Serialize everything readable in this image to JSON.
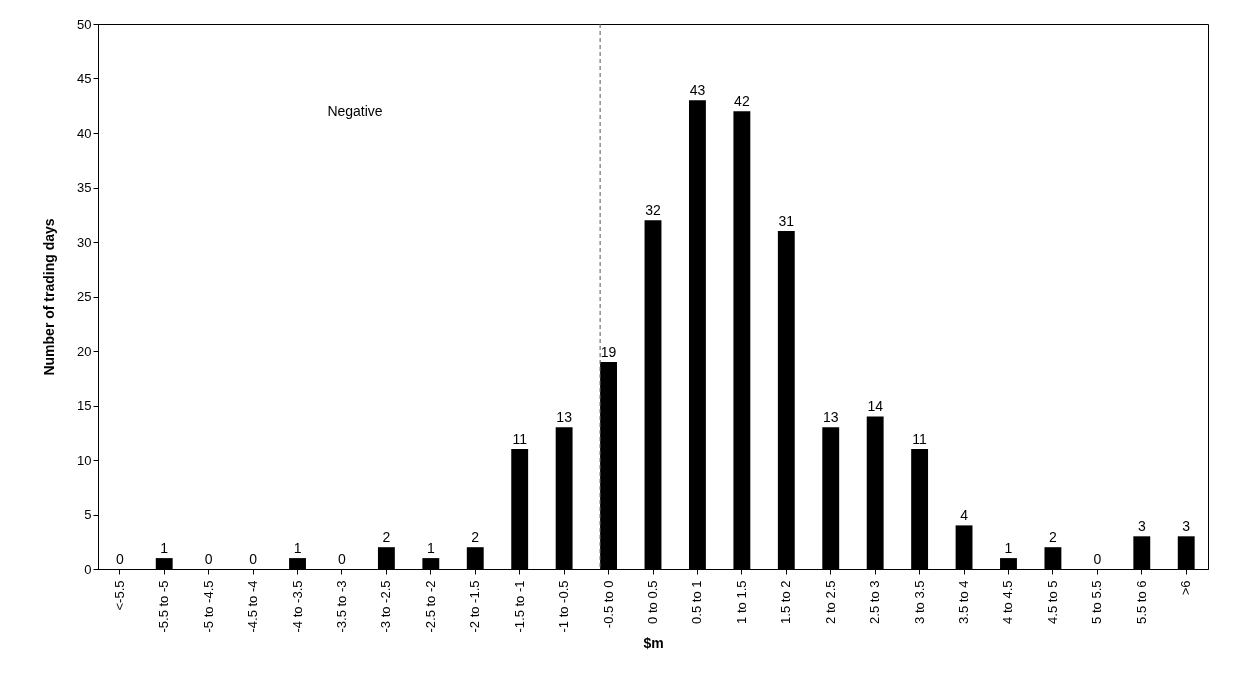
{
  "chart_data": {
    "type": "bar",
    "xlabel": "$m",
    "ylabel": "Number of trading days",
    "categories": [
      "<-5.5",
      "-5.5 to -5",
      "-5 to -4.5",
      "-4.5 to -4",
      "-4 to -3.5",
      "-3.5 to -3",
      "-3 to -2.5",
      "-2.5 to -2",
      "-2 to -1.5",
      "-1.5 to -1",
      "-1 to -0.5",
      "-0.5 to 0",
      "0 to 0.5",
      "0.5 to 1",
      "1 to 1.5",
      "1.5 to 2",
      "2 to 2.5",
      "2.5 to 3",
      "3 to 3.5",
      "3.5 to 4",
      "4 to 4.5",
      "4.5 to 5",
      "5 to 5.5",
      "5.5 to 6",
      ">6"
    ],
    "values": [
      0,
      1,
      0,
      0,
      1,
      0,
      2,
      1,
      2,
      11,
      13,
      19,
      32,
      43,
      42,
      31,
      13,
      14,
      11,
      4,
      1,
      2,
      0,
      3,
      3
    ],
    "color": "#000000",
    "ylim": [
      0,
      50
    ],
    "yticks": [
      0,
      5,
      10,
      15,
      20,
      25,
      30,
      35,
      40,
      45,
      50
    ],
    "data_labels": true,
    "grid": false,
    "ref_lines": [
      {
        "axis": "x",
        "value": "-0.5 to 0",
        "line_style": "dashed",
        "color": "#555555"
      }
    ],
    "annotations": [
      "Negative"
    ]
  }
}
